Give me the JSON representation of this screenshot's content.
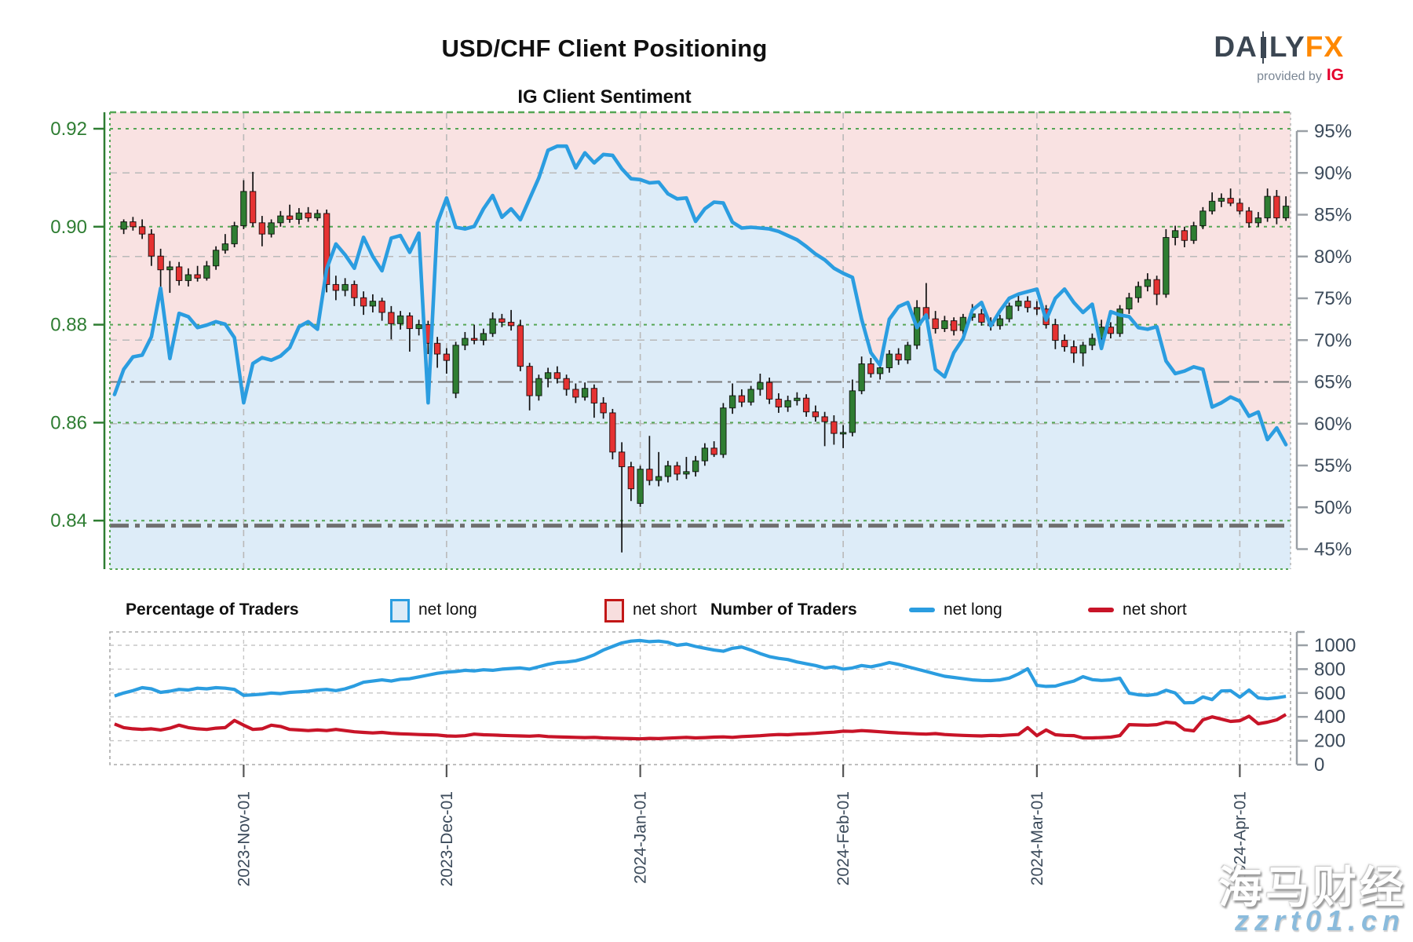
{
  "header": {
    "title": "USD/CHF Client Positioning",
    "subtitle": "IG Client Sentiment"
  },
  "logo": {
    "part1": "DA",
    "part2": "LY",
    "part3": "FX",
    "provided_by": "provided by",
    "ig": "IG"
  },
  "legend": {
    "group1_label": "Percentage of Traders",
    "group1_long": "net long",
    "group1_short": "net short",
    "group2_label": "Number of Traders",
    "group2_long": "net long",
    "group2_short": "net short"
  },
  "watermark": {
    "line1": "海马财经",
    "line2": "zzrt01.cn"
  },
  "colors": {
    "net_long_fill": "#ddecf8",
    "net_short_fill": "#f9e2e2",
    "sentiment_line": "#2b9de0",
    "count_long_line": "#2b9de0",
    "count_short_line": "#c81428",
    "candle_up": "#2f7d32",
    "candle_down": "#e53232",
    "price_axis": "#2e7d32",
    "pct_axis_text": "#3b4a5a",
    "grid_green": "#55a655",
    "grid_gray": "#b9b9b9",
    "ref_line": "#787878",
    "legend_long_swatch_border": "#2b9de0",
    "legend_short_swatch_border": "#c21717"
  },
  "chart_data": {
    "type": "candlestick+line",
    "title": "USD/CHF Client Positioning",
    "subtitle": "IG Client Sentiment",
    "n_points": 128,
    "x_tick_labels": [
      "2023-Nov-01",
      "2023-Dec-01",
      "2024-Jan-01",
      "2024-Feb-01",
      "2024-Mar-01",
      "2024-Apr-01"
    ],
    "x_tick_indices": [
      14,
      36,
      57,
      79,
      100,
      122
    ],
    "price_axis": {
      "tick_labels": [
        "0.92",
        "0.90",
        "0.88",
        "0.86",
        "0.84"
      ],
      "ticks": [
        0.92,
        0.9,
        0.88,
        0.86,
        0.84
      ],
      "range_top": 0.92,
      "range_note": "left axis, green"
    },
    "pct_axis": {
      "tick_labels": [
        "95%",
        "90%",
        "85%",
        "80%",
        "75%",
        "70%",
        "65%",
        "60%",
        "55%",
        "50%",
        "45%"
      ],
      "ticks": [
        95,
        90,
        85,
        80,
        75,
        70,
        65,
        60,
        55,
        50,
        45
      ],
      "minor_grid": [
        90,
        80,
        70,
        60
      ]
    },
    "count_axis": {
      "tick_labels": [
        "1000",
        "800",
        "600",
        "400",
        "200",
        "0"
      ],
      "ticks": [
        1000,
        800,
        600,
        400,
        200,
        0
      ]
    },
    "reference_lines": {
      "pct_dashdot_thin": 65,
      "pct_dashdot_thick": 47.8
    },
    "series": {
      "net_long_pct": [
        63.5,
        66.5,
        68,
        68.2,
        70.4,
        76.2,
        67.8,
        73.2,
        72.8,
        71.5,
        71.8,
        72.2,
        71.9,
        70.3,
        62.5,
        67.2,
        67.9,
        67.6,
        68.1,
        69.1,
        71.6,
        72.2,
        71.3,
        78.5,
        81.5,
        80.2,
        78.6,
        82.3,
        80.0,
        78.3,
        82.2,
        82.5,
        80.5,
        82.8,
        62.5,
        84.0,
        87.0,
        83.5,
        83.3,
        83.6,
        85.7,
        87.3,
        84.7,
        85.7,
        84.4,
        86.9,
        89.4,
        92.7,
        93.2,
        93.2,
        90.6,
        92.4,
        91.2,
        92.2,
        92.1,
        90.5,
        89.3,
        89.2,
        88.8,
        88.9,
        87.5,
        86.9,
        87.0,
        84.2,
        85.7,
        86.5,
        86.4,
        84.1,
        83.4,
        83.5,
        83.4,
        83.3,
        83.0,
        82.5,
        82.0,
        81.2,
        80.3,
        79.6,
        78.6,
        78.0,
        77.5,
        72.5,
        68.5,
        67.0,
        72.5,
        74.0,
        74.5,
        71.5,
        73.0,
        66.5,
        65.6,
        68.5,
        70.2,
        73.6,
        74.5,
        71.7,
        73.5,
        75.0,
        75.5,
        75.8,
        76.1,
        72.4,
        75.0,
        76.1,
        74.5,
        73.3,
        74.3,
        69.0,
        73.4,
        73.0,
        72.8,
        71.5,
        71.3,
        71.6,
        67.5,
        66.0,
        66.3,
        66.8,
        66.5,
        62.0,
        62.5,
        63.2,
        62.7,
        60.9,
        61.4,
        58.1,
        59.5,
        57.5
      ],
      "candles_start_index": 1,
      "candles_ohlc": [
        [
          0.8995,
          0.9015,
          0.8985,
          0.901
        ],
        [
          0.901,
          0.902,
          0.8992,
          0.9
        ],
        [
          0.9,
          0.9015,
          0.8975,
          0.8985
        ],
        [
          0.8985,
          0.8995,
          0.892,
          0.894
        ],
        [
          0.894,
          0.8955,
          0.8875,
          0.8912
        ],
        [
          0.8912,
          0.893,
          0.8865,
          0.8918
        ],
        [
          0.8918,
          0.8928,
          0.888,
          0.889
        ],
        [
          0.889,
          0.8915,
          0.8878,
          0.8902
        ],
        [
          0.8902,
          0.892,
          0.8888,
          0.8895
        ],
        [
          0.8895,
          0.893,
          0.889,
          0.892
        ],
        [
          0.892,
          0.896,
          0.8912,
          0.8952
        ],
        [
          0.8952,
          0.8985,
          0.8945,
          0.8965
        ],
        [
          0.8965,
          0.901,
          0.8958,
          0.9002
        ],
        [
          0.9002,
          0.9095,
          0.8995,
          0.9072
        ],
        [
          0.9072,
          0.9112,
          0.9,
          0.9008
        ],
        [
          0.9008,
          0.9022,
          0.896,
          0.8985
        ],
        [
          0.8985,
          0.9015,
          0.8978,
          0.9008
        ],
        [
          0.9008,
          0.9032,
          0.9,
          0.9022
        ],
        [
          0.9022,
          0.9045,
          0.9008,
          0.9015
        ],
        [
          0.9015,
          0.9038,
          0.9005,
          0.9028
        ],
        [
          0.9028,
          0.904,
          0.901,
          0.9018
        ],
        [
          0.9018,
          0.9035,
          0.9012,
          0.9027
        ],
        [
          0.9027,
          0.9035,
          0.8866,
          0.8882
        ],
        [
          0.8882,
          0.89,
          0.885,
          0.887
        ],
        [
          0.887,
          0.8895,
          0.8858,
          0.8882
        ],
        [
          0.8882,
          0.889,
          0.8838,
          0.8855
        ],
        [
          0.8855,
          0.8868,
          0.882,
          0.8838
        ],
        [
          0.8838,
          0.8862,
          0.8825,
          0.8848
        ],
        [
          0.8848,
          0.8855,
          0.8808,
          0.8825
        ],
        [
          0.8825,
          0.8838,
          0.877,
          0.8802
        ],
        [
          0.8802,
          0.8828,
          0.879,
          0.8818
        ],
        [
          0.8818,
          0.8825,
          0.8745,
          0.8792
        ],
        [
          0.8792,
          0.881,
          0.8778,
          0.88
        ],
        [
          0.88,
          0.8808,
          0.874,
          0.8762
        ],
        [
          0.8762,
          0.8775,
          0.8712,
          0.874
        ],
        [
          0.874,
          0.8752,
          0.87,
          0.8727
        ],
        [
          0.866,
          0.8765,
          0.865,
          0.8758
        ],
        [
          0.8758,
          0.8785,
          0.8748,
          0.8772
        ],
        [
          0.8772,
          0.88,
          0.876,
          0.8768
        ],
        [
          0.8768,
          0.8792,
          0.8758,
          0.8782
        ],
        [
          0.8782,
          0.8825,
          0.8775,
          0.8812
        ],
        [
          0.8812,
          0.8822,
          0.8795,
          0.8805
        ],
        [
          0.8805,
          0.883,
          0.8788,
          0.8798
        ],
        [
          0.8798,
          0.881,
          0.8705,
          0.8715
        ],
        [
          0.8715,
          0.8722,
          0.8625,
          0.8655
        ],
        [
          0.8655,
          0.8698,
          0.8645,
          0.869
        ],
        [
          0.869,
          0.8712,
          0.8672,
          0.8702
        ],
        [
          0.8702,
          0.8715,
          0.868,
          0.869
        ],
        [
          0.869,
          0.8698,
          0.8655,
          0.8668
        ],
        [
          0.8668,
          0.868,
          0.864,
          0.8652
        ],
        [
          0.8652,
          0.8682,
          0.8645,
          0.867
        ],
        [
          0.867,
          0.8678,
          0.861,
          0.864
        ],
        [
          0.864,
          0.8652,
          0.8608,
          0.862
        ],
        [
          0.862,
          0.8628,
          0.8525,
          0.854
        ],
        [
          0.854,
          0.856,
          0.8335,
          0.851
        ],
        [
          0.851,
          0.852,
          0.844,
          0.8465
        ],
        [
          0.8435,
          0.8512,
          0.8428,
          0.8505
        ],
        [
          0.8505,
          0.8573,
          0.8472,
          0.8482
        ],
        [
          0.8482,
          0.854,
          0.847,
          0.849
        ],
        [
          0.849,
          0.8522,
          0.8478,
          0.8512
        ],
        [
          0.8512,
          0.852,
          0.8482,
          0.8495
        ],
        [
          0.8495,
          0.853,
          0.8485,
          0.85
        ],
        [
          0.85,
          0.8532,
          0.849,
          0.8522
        ],
        [
          0.8522,
          0.8558,
          0.8512,
          0.8548
        ],
        [
          0.8548,
          0.8562,
          0.853,
          0.8535
        ],
        [
          0.8535,
          0.864,
          0.8528,
          0.863
        ],
        [
          0.863,
          0.868,
          0.8618,
          0.8655
        ],
        [
          0.8655,
          0.8668,
          0.8632,
          0.8642
        ],
        [
          0.8642,
          0.8675,
          0.8635,
          0.8668
        ],
        [
          0.8668,
          0.87,
          0.8655,
          0.8682
        ],
        [
          0.8682,
          0.8692,
          0.8638,
          0.8648
        ],
        [
          0.8648,
          0.866,
          0.862,
          0.8632
        ],
        [
          0.8632,
          0.8655,
          0.8622,
          0.8645
        ],
        [
          0.8645,
          0.8662,
          0.8635,
          0.865
        ],
        [
          0.865,
          0.8658,
          0.8612,
          0.8622
        ],
        [
          0.8622,
          0.8635,
          0.8602,
          0.8612
        ],
        [
          0.8612,
          0.8622,
          0.8552,
          0.8602
        ],
        [
          0.8602,
          0.8615,
          0.8555,
          0.8578
        ],
        [
          0.8578,
          0.8595,
          0.8548,
          0.858
        ],
        [
          0.858,
          0.8688,
          0.8572,
          0.8665
        ],
        [
          0.8665,
          0.8735,
          0.8658,
          0.872
        ],
        [
          0.872,
          0.8732,
          0.8692,
          0.87
        ],
        [
          0.87,
          0.8722,
          0.8688,
          0.8712
        ],
        [
          0.8712,
          0.8748,
          0.8702,
          0.874
        ],
        [
          0.874,
          0.8752,
          0.8718,
          0.8728
        ],
        [
          0.8728,
          0.8765,
          0.872,
          0.8758
        ],
        [
          0.8758,
          0.885,
          0.875,
          0.8835
        ],
        [
          0.8835,
          0.8885,
          0.8805,
          0.8812
        ],
        [
          0.8812,
          0.8828,
          0.8782,
          0.8792
        ],
        [
          0.8792,
          0.8818,
          0.8785,
          0.8808
        ],
        [
          0.8808,
          0.8815,
          0.8778,
          0.8788
        ],
        [
          0.8788,
          0.8822,
          0.878,
          0.8815
        ],
        [
          0.8815,
          0.8842,
          0.8808,
          0.8822
        ],
        [
          0.8822,
          0.8832,
          0.8798,
          0.8805
        ],
        [
          0.8805,
          0.8815,
          0.8788,
          0.8798
        ],
        [
          0.8798,
          0.882,
          0.879,
          0.8812
        ],
        [
          0.8812,
          0.8845,
          0.8805,
          0.8838
        ],
        [
          0.8838,
          0.8862,
          0.8828,
          0.8848
        ],
        [
          0.8848,
          0.8858,
          0.8825,
          0.8835
        ],
        [
          0.8835,
          0.8848,
          0.882,
          0.8832
        ],
        [
          0.8832,
          0.884,
          0.8792,
          0.88
        ],
        [
          0.88,
          0.8812,
          0.875,
          0.8768
        ],
        [
          0.8768,
          0.878,
          0.8745,
          0.8755
        ],
        [
          0.8755,
          0.8768,
          0.8722,
          0.8742
        ],
        [
          0.8742,
          0.8765,
          0.8715,
          0.8758
        ],
        [
          0.8758,
          0.8782,
          0.8748,
          0.8772
        ],
        [
          0.8772,
          0.881,
          0.8762,
          0.8795
        ],
        [
          0.8795,
          0.8805,
          0.8772,
          0.8782
        ],
        [
          0.8782,
          0.884,
          0.8775,
          0.8832
        ],
        [
          0.8832,
          0.8865,
          0.8822,
          0.8855
        ],
        [
          0.8855,
          0.8888,
          0.8845,
          0.8878
        ],
        [
          0.8878,
          0.8905,
          0.8868,
          0.8892
        ],
        [
          0.8892,
          0.89,
          0.884,
          0.8862
        ],
        [
          0.8862,
          0.8995,
          0.8855,
          0.8978
        ],
        [
          0.8978,
          0.9002,
          0.8962,
          0.8992
        ],
        [
          0.8992,
          0.9,
          0.8958,
          0.8972
        ],
        [
          0.8972,
          0.901,
          0.8965,
          0.9002
        ],
        [
          0.9002,
          0.904,
          0.8995,
          0.9032
        ],
        [
          0.9032,
          0.907,
          0.9025,
          0.9052
        ],
        [
          0.9052,
          0.9068,
          0.904,
          0.9058
        ],
        [
          0.9058,
          0.9078,
          0.9042,
          0.9048
        ],
        [
          0.9048,
          0.9058,
          0.9025,
          0.9032
        ],
        [
          0.9032,
          0.904,
          0.8998,
          0.9008
        ],
        [
          0.9008,
          0.903,
          0.9,
          0.9018
        ],
        [
          0.9018,
          0.9078,
          0.901,
          0.9062
        ],
        [
          0.9062,
          0.9075,
          0.9005,
          0.9018
        ],
        [
          0.9018,
          0.9062,
          0.9012,
          0.9042
        ]
      ],
      "net_long_count": [
        575,
        600,
        620,
        645,
        635,
        605,
        615,
        630,
        625,
        640,
        635,
        645,
        640,
        630,
        580,
        585,
        590,
        600,
        595,
        605,
        610,
        615,
        625,
        630,
        620,
        635,
        660,
        690,
        700,
        710,
        700,
        715,
        720,
        735,
        750,
        765,
        775,
        780,
        790,
        785,
        795,
        790,
        800,
        805,
        810,
        800,
        820,
        840,
        855,
        860,
        870,
        890,
        920,
        960,
        990,
        1020,
        1035,
        1040,
        1030,
        1035,
        1025,
        1000,
        1010,
        990,
        975,
        960,
        950,
        975,
        985,
        960,
        930,
        905,
        890,
        880,
        860,
        845,
        830,
        810,
        820,
        800,
        810,
        830,
        820,
        835,
        855,
        840,
        820,
        800,
        780,
        760,
        740,
        730,
        720,
        710,
        705,
        704,
        710,
        725,
        760,
        803,
        664,
        655,
        658,
        680,
        700,
        737,
        712,
        705,
        710,
        724,
        599,
        585,
        580,
        590,
        623,
        600,
        518,
        520,
        567,
        545,
        617,
        620,
        565,
        625,
        559,
        552,
        560,
        572
      ],
      "net_short_count": [
        340,
        310,
        300,
        295,
        300,
        290,
        305,
        330,
        310,
        300,
        295,
        305,
        310,
        370,
        330,
        295,
        300,
        330,
        320,
        295,
        290,
        285,
        290,
        285,
        295,
        285,
        275,
        270,
        265,
        270,
        262,
        258,
        255,
        252,
        250,
        248,
        240,
        238,
        242,
        255,
        250,
        248,
        245,
        242,
        240,
        238,
        242,
        235,
        232,
        230,
        228,
        226,
        228,
        224,
        222,
        220,
        218,
        216,
        220,
        218,
        222,
        225,
        228,
        224,
        226,
        230,
        232,
        228,
        235,
        238,
        242,
        248,
        252,
        250,
        255,
        258,
        262,
        268,
        272,
        280,
        278,
        285,
        280,
        275,
        270,
        265,
        262,
        258,
        255,
        260,
        252,
        248,
        245,
        242,
        240,
        245,
        243,
        248,
        252,
        310,
        243,
        290,
        250,
        245,
        243,
        224,
        224,
        226,
        230,
        243,
        335,
        332,
        330,
        335,
        355,
        348,
        292,
        283,
        375,
        400,
        381,
        362,
        368,
        405,
        342,
        355,
        375,
        420
      ]
    }
  }
}
